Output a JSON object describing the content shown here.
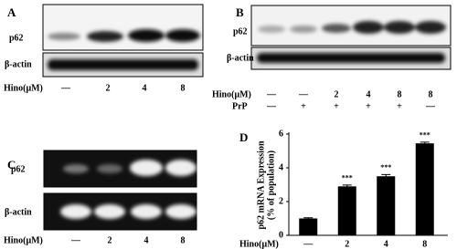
{
  "panel_a": {
    "label": "A",
    "rows": [
      "p62",
      "β-actin"
    ],
    "treatment_label": "Hino(μM)",
    "lanes": [
      "—",
      "2",
      "4",
      "8"
    ]
  },
  "panel_b": {
    "label": "B",
    "rows": [
      "p62",
      "β-actin"
    ],
    "treatments": [
      {
        "label": "Hino(μM)",
        "lanes": [
          "—",
          "—",
          "2",
          "4",
          "8",
          "8"
        ]
      },
      {
        "label": "PrP",
        "lanes": [
          "—",
          "+",
          "+",
          "+",
          "+",
          "—"
        ]
      }
    ]
  },
  "panel_c": {
    "label": "C",
    "rows": [
      "p62",
      "β-actin"
    ],
    "treatment_label": "Hino(μM)",
    "lanes": [
      "—",
      "2",
      "4",
      "8"
    ]
  },
  "chart_data": {
    "type": "bar",
    "panel_label": "D",
    "y_label": [
      "p62 mRNA Expression",
      "(% of population)"
    ],
    "x_label": "Hino(μM)",
    "categories": [
      "—",
      "2",
      "4",
      "8"
    ],
    "values": [
      1.0,
      2.9,
      3.5,
      5.45
    ],
    "errors": [
      0.04,
      0.08,
      0.1,
      0.07
    ],
    "significance": [
      null,
      "***",
      "***",
      "***"
    ],
    "color": "#000000",
    "ylim": [
      0,
      6
    ],
    "yticks": [
      0,
      2,
      4,
      6
    ]
  }
}
